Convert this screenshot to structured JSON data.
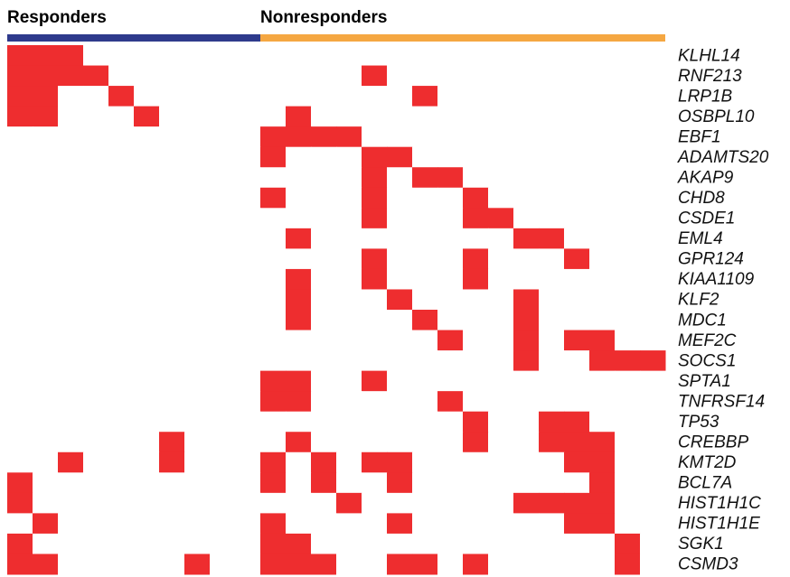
{
  "chart_data": {
    "type": "heatmap",
    "on_color": "#ee2d2f",
    "off_color": "#ffffff",
    "groups": [
      {
        "name": "Responders",
        "color": "#2e3a8c",
        "n": 10
      },
      {
        "name": "Nonresponders",
        "color": "#f5a742",
        "n": 16
      }
    ],
    "rows": [
      "KLHL14",
      "RNF213",
      "LRP1B",
      "OSBPL10",
      "EBF1",
      "ADAMTS20",
      "AKAP9",
      "CHD8",
      "CSDE1",
      "EML4",
      "GPR124",
      "KIAA1109",
      "KLF2",
      "MDC1",
      "MEF2C",
      "SOCS1",
      "SPTA1",
      "TNFRSF14",
      "TP53",
      "CREBBP",
      "KMT2D",
      "BCL7A",
      "HIST1H1C",
      "HIST1H1E",
      "SGK1",
      "CSMD3"
    ],
    "values": [
      [
        1,
        1,
        1,
        0,
        0,
        0,
        0,
        0,
        0,
        0,
        0,
        0,
        0,
        0,
        0,
        0,
        0,
        0,
        0,
        0,
        0,
        0,
        0,
        0,
        0,
        0
      ],
      [
        1,
        1,
        1,
        1,
        0,
        0,
        0,
        0,
        0,
        0,
        0,
        0,
        0,
        0,
        1,
        0,
        0,
        0,
        0,
        0,
        0,
        0,
        0,
        0,
        0,
        0
      ],
      [
        1,
        1,
        0,
        0,
        1,
        0,
        0,
        0,
        0,
        0,
        0,
        0,
        0,
        0,
        0,
        0,
        1,
        0,
        0,
        0,
        0,
        0,
        0,
        0,
        0,
        0
      ],
      [
        1,
        1,
        0,
        0,
        0,
        1,
        0,
        0,
        0,
        0,
        0,
        1,
        0,
        0,
        0,
        0,
        0,
        0,
        0,
        0,
        0,
        0,
        0,
        0,
        0,
        0
      ],
      [
        0,
        0,
        0,
        0,
        0,
        0,
        0,
        0,
        0,
        0,
        1,
        1,
        1,
        1,
        0,
        0,
        0,
        0,
        0,
        0,
        0,
        0,
        0,
        0,
        0,
        0
      ],
      [
        0,
        0,
        0,
        0,
        0,
        0,
        0,
        0,
        0,
        0,
        1,
        0,
        0,
        0,
        1,
        1,
        0,
        0,
        0,
        0,
        0,
        0,
        0,
        0,
        0,
        0
      ],
      [
        0,
        0,
        0,
        0,
        0,
        0,
        0,
        0,
        0,
        0,
        0,
        0,
        0,
        0,
        1,
        0,
        1,
        1,
        0,
        0,
        0,
        0,
        0,
        0,
        0,
        0
      ],
      [
        0,
        0,
        0,
        0,
        0,
        0,
        0,
        0,
        0,
        0,
        1,
        0,
        0,
        0,
        1,
        0,
        0,
        0,
        1,
        0,
        0,
        0,
        0,
        0,
        0,
        0
      ],
      [
        0,
        0,
        0,
        0,
        0,
        0,
        0,
        0,
        0,
        0,
        0,
        0,
        0,
        0,
        1,
        0,
        0,
        0,
        1,
        1,
        0,
        0,
        0,
        0,
        0,
        0
      ],
      [
        0,
        0,
        0,
        0,
        0,
        0,
        0,
        0,
        0,
        0,
        0,
        1,
        0,
        0,
        0,
        0,
        0,
        0,
        0,
        0,
        1,
        1,
        0,
        0,
        0,
        0
      ],
      [
        0,
        0,
        0,
        0,
        0,
        0,
        0,
        0,
        0,
        0,
        0,
        0,
        0,
        0,
        1,
        0,
        0,
        0,
        1,
        0,
        0,
        0,
        1,
        0,
        0,
        0
      ],
      [
        0,
        0,
        0,
        0,
        0,
        0,
        0,
        0,
        0,
        0,
        0,
        1,
        0,
        0,
        1,
        0,
        0,
        0,
        1,
        0,
        0,
        0,
        0,
        0,
        0,
        0
      ],
      [
        0,
        0,
        0,
        0,
        0,
        0,
        0,
        0,
        0,
        0,
        0,
        1,
        0,
        0,
        0,
        1,
        0,
        0,
        0,
        0,
        1,
        0,
        0,
        0,
        0,
        0
      ],
      [
        0,
        0,
        0,
        0,
        0,
        0,
        0,
        0,
        0,
        0,
        0,
        1,
        0,
        0,
        0,
        0,
        1,
        0,
        0,
        0,
        1,
        0,
        0,
        0,
        0,
        0
      ],
      [
        0,
        0,
        0,
        0,
        0,
        0,
        0,
        0,
        0,
        0,
        0,
        0,
        0,
        0,
        0,
        0,
        0,
        1,
        0,
        0,
        1,
        0,
        1,
        1,
        0,
        0
      ],
      [
        0,
        0,
        0,
        0,
        0,
        0,
        0,
        0,
        0,
        0,
        0,
        0,
        0,
        0,
        0,
        0,
        0,
        0,
        0,
        0,
        1,
        0,
        0,
        1,
        1,
        1
      ],
      [
        0,
        0,
        0,
        0,
        0,
        0,
        0,
        0,
        0,
        0,
        1,
        1,
        0,
        0,
        1,
        0,
        0,
        0,
        0,
        0,
        0,
        0,
        0,
        0,
        0,
        0
      ],
      [
        0,
        0,
        0,
        0,
        0,
        0,
        0,
        0,
        0,
        0,
        1,
        1,
        0,
        0,
        0,
        0,
        0,
        1,
        0,
        0,
        0,
        0,
        0,
        0,
        0,
        0
      ],
      [
        0,
        0,
        0,
        0,
        0,
        0,
        0,
        0,
        0,
        0,
        0,
        0,
        0,
        0,
        0,
        0,
        0,
        0,
        1,
        0,
        0,
        1,
        1,
        0,
        0,
        0
      ],
      [
        0,
        0,
        0,
        0,
        0,
        0,
        1,
        0,
        0,
        0,
        0,
        1,
        0,
        0,
        0,
        0,
        0,
        0,
        1,
        0,
        0,
        1,
        1,
        1,
        0,
        0
      ],
      [
        0,
        0,
        1,
        0,
        0,
        0,
        1,
        0,
        0,
        0,
        1,
        0,
        1,
        0,
        1,
        1,
        0,
        0,
        0,
        0,
        0,
        0,
        1,
        1,
        0,
        0
      ],
      [
        1,
        0,
        0,
        0,
        0,
        0,
        0,
        0,
        0,
        0,
        1,
        0,
        1,
        0,
        0,
        1,
        0,
        0,
        0,
        0,
        0,
        0,
        0,
        1,
        0,
        0
      ],
      [
        1,
        0,
        0,
        0,
        0,
        0,
        0,
        0,
        0,
        0,
        0,
        0,
        0,
        1,
        0,
        0,
        0,
        0,
        0,
        0,
        1,
        1,
        1,
        1,
        0,
        0
      ],
      [
        0,
        1,
        0,
        0,
        0,
        0,
        0,
        0,
        0,
        0,
        1,
        0,
        0,
        0,
        0,
        1,
        0,
        0,
        0,
        0,
        0,
        0,
        1,
        1,
        0,
        0
      ],
      [
        1,
        0,
        0,
        0,
        0,
        0,
        0,
        0,
        0,
        0,
        1,
        1,
        0,
        0,
        0,
        0,
        0,
        0,
        0,
        0,
        0,
        0,
        0,
        0,
        1,
        0
      ],
      [
        1,
        1,
        0,
        0,
        0,
        0,
        0,
        1,
        0,
        0,
        1,
        1,
        1,
        0,
        0,
        1,
        1,
        0,
        1,
        0,
        0,
        0,
        0,
        0,
        1,
        0
      ]
    ]
  }
}
